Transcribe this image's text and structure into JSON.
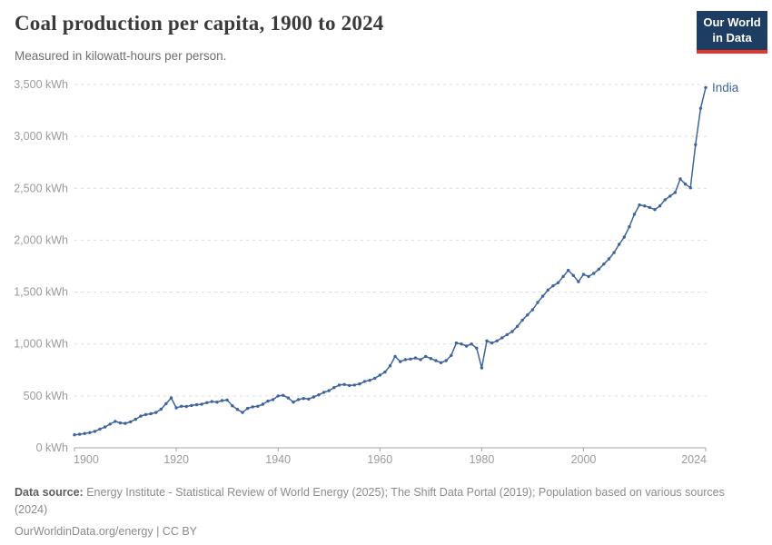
{
  "header": {
    "title": "Coal production per capita, 1900 to 2024",
    "subtitle": "Measured in kilowatt-hours per person."
  },
  "logo": {
    "line1": "Our World",
    "line2": "in Data",
    "bg_color": "#1d3d63",
    "accent_color": "#e6352b"
  },
  "chart_data": {
    "type": "line",
    "title": "Coal production per capita, 1900 to 2024",
    "xlabel": "",
    "ylabel": "kilowatt-hours per person",
    "xlim": [
      1900,
      2024
    ],
    "ylim": [
      0,
      3500
    ],
    "grid": "horizontal-dashed",
    "legend_position": "end-of-line",
    "x_ticks": [
      1900,
      1920,
      1940,
      1960,
      1980,
      2000,
      2024
    ],
    "y_ticks": [
      0,
      500,
      1000,
      1500,
      2000,
      2500,
      3000,
      3500
    ],
    "y_tick_labels": [
      "0 kWh",
      "500 kWh",
      "1,000 kWh",
      "1,500 kWh",
      "2,000 kWh",
      "2,500 kWh",
      "3,000 kWh",
      "3,500 kWh"
    ],
    "series": [
      {
        "name": "India",
        "color": "#3d649d",
        "x": [
          1900,
          1901,
          1902,
          1903,
          1904,
          1905,
          1906,
          1907,
          1908,
          1909,
          1910,
          1911,
          1912,
          1913,
          1914,
          1915,
          1916,
          1917,
          1918,
          1919,
          1920,
          1921,
          1922,
          1923,
          1924,
          1925,
          1926,
          1927,
          1928,
          1929,
          1930,
          1931,
          1932,
          1933,
          1934,
          1935,
          1936,
          1937,
          1938,
          1939,
          1940,
          1941,
          1942,
          1943,
          1944,
          1945,
          1946,
          1947,
          1948,
          1949,
          1950,
          1951,
          1952,
          1953,
          1954,
          1955,
          1956,
          1957,
          1958,
          1959,
          1960,
          1961,
          1962,
          1963,
          1964,
          1965,
          1966,
          1967,
          1968,
          1969,
          1970,
          1971,
          1972,
          1973,
          1974,
          1975,
          1976,
          1977,
          1978,
          1979,
          1980,
          1981,
          1982,
          1983,
          1984,
          1985,
          1986,
          1987,
          1988,
          1989,
          1990,
          1991,
          1992,
          1993,
          1994,
          1995,
          1996,
          1997,
          1998,
          1999,
          2000,
          2001,
          2002,
          2003,
          2004,
          2005,
          2006,
          2007,
          2008,
          2009,
          2010,
          2011,
          2012,
          2013,
          2014,
          2015,
          2016,
          2017,
          2018,
          2019,
          2020,
          2021,
          2022,
          2023,
          2024
        ],
        "values": [
          125,
          130,
          138,
          146,
          158,
          180,
          200,
          228,
          255,
          240,
          235,
          250,
          275,
          305,
          320,
          328,
          340,
          372,
          425,
          480,
          385,
          400,
          398,
          408,
          415,
          420,
          435,
          445,
          440,
          455,
          460,
          405,
          370,
          340,
          380,
          395,
          400,
          420,
          450,
          465,
          500,
          505,
          480,
          440,
          465,
          475,
          470,
          490,
          510,
          535,
          550,
          580,
          605,
          610,
          600,
          605,
          615,
          640,
          650,
          670,
          700,
          730,
          790,
          880,
          830,
          850,
          855,
          865,
          850,
          880,
          860,
          840,
          820,
          840,
          890,
          1010,
          1000,
          980,
          1000,
          960,
          770,
          1030,
          1010,
          1030,
          1060,
          1090,
          1120,
          1170,
          1230,
          1280,
          1330,
          1400,
          1460,
          1520,
          1560,
          1590,
          1650,
          1710,
          1660,
          1600,
          1670,
          1650,
          1680,
          1720,
          1770,
          1820,
          1880,
          1960,
          2030,
          2130,
          2250,
          2340,
          2330,
          2315,
          2295,
          2330,
          2390,
          2425,
          2460,
          2590,
          2540,
          2505,
          2920,
          3270,
          3470
        ]
      }
    ]
  },
  "footer": {
    "source_label": "Data source:",
    "source_text": " Energy Institute - Statistical Review of World Energy (2025); The Shift Data Portal (2019); Population based on various sources (2024)",
    "link_line": "OurWorldinData.org/energy | CC BY"
  }
}
